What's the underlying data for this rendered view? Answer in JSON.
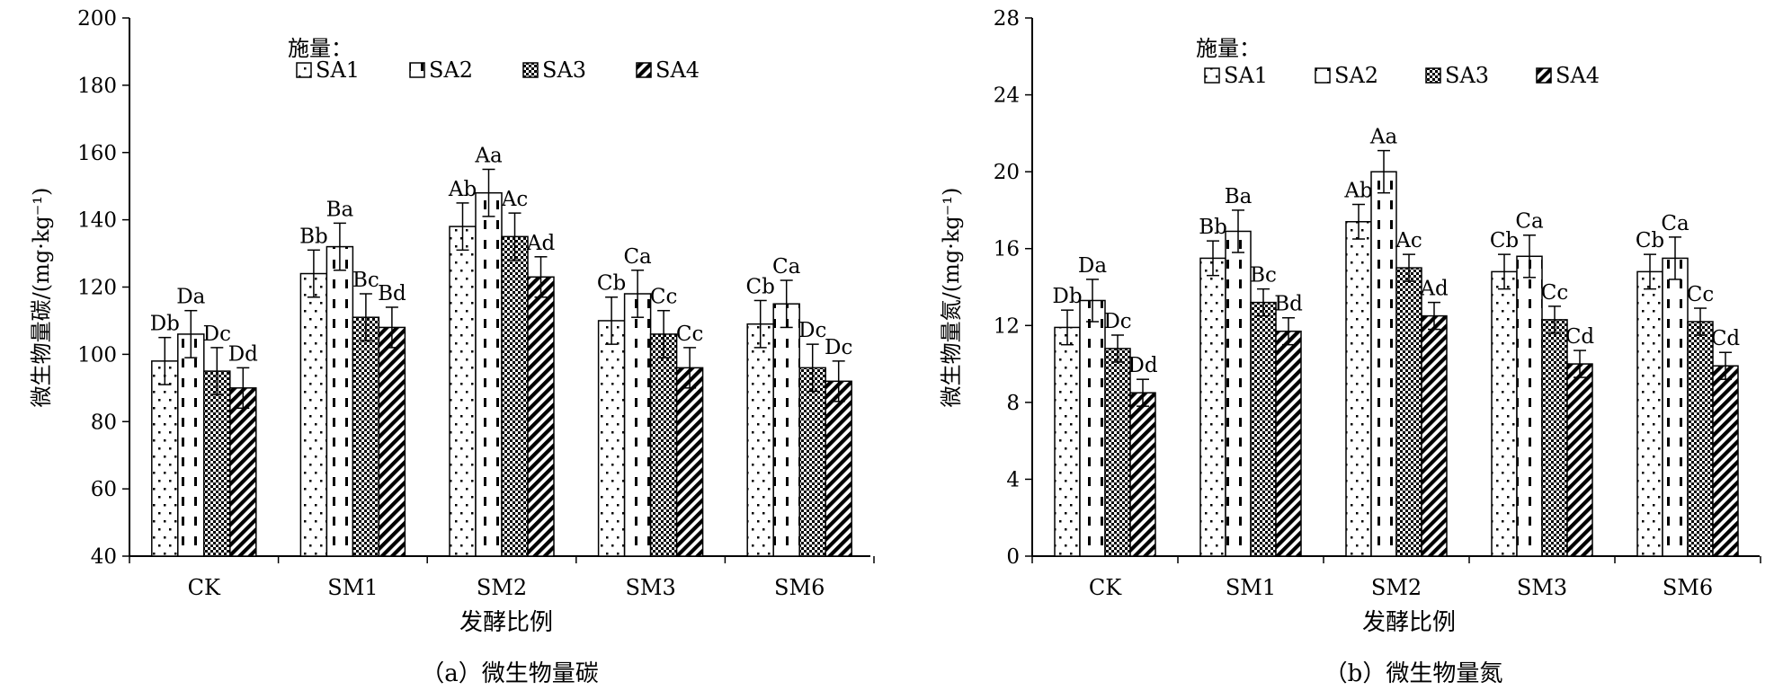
{
  "legend_title": "施量：",
  "chart_data": [
    {
      "type": "bar",
      "caption": "（a）微生物量碳",
      "xlabel": "发酵比例",
      "ylabel": "微生物量碳/(mg·kg⁻¹)",
      "ylim": [
        40,
        200
      ],
      "yticks": [
        40,
        60,
        80,
        100,
        120,
        140,
        160,
        180,
        200
      ],
      "categories": [
        "CK",
        "SM1",
        "SM2",
        "SM3",
        "SM6"
      ],
      "legend_position": "top-left",
      "series": [
        {
          "name": "SA1",
          "values": [
            98,
            124,
            138,
            110,
            109
          ],
          "errors": [
            7,
            7,
            7,
            7,
            7
          ],
          "labels": [
            "Db",
            "Bb",
            "Ab",
            "Cb",
            "Cb"
          ]
        },
        {
          "name": "SA2",
          "values": [
            106,
            132,
            148,
            118,
            115
          ],
          "errors": [
            7,
            7,
            7,
            7,
            7
          ],
          "labels": [
            "Da",
            "Ba",
            "Aa",
            "Ca",
            "Ca"
          ]
        },
        {
          "name": "SA3",
          "values": [
            95,
            111,
            135,
            106,
            96
          ],
          "errors": [
            7,
            7,
            7,
            7,
            7
          ],
          "labels": [
            "Dc",
            "Bc",
            "Ac",
            "Cc",
            "Dc"
          ]
        },
        {
          "name": "SA4",
          "values": [
            90,
            108,
            123,
            96,
            92
          ],
          "errors": [
            6,
            6,
            6,
            6,
            6
          ],
          "labels": [
            "Dd",
            "Bd",
            "Ad",
            "Cc",
            "Dc"
          ]
        }
      ]
    },
    {
      "type": "bar",
      "caption": "（b）微生物量氮",
      "xlabel": "发酵比例",
      "ylabel": "微生物量氮/(mg·kg⁻¹)",
      "ylim": [
        0,
        28
      ],
      "yticks": [
        0,
        4,
        8,
        12,
        16,
        20,
        24,
        28
      ],
      "categories": [
        "CK",
        "SM1",
        "SM2",
        "SM3",
        "SM6"
      ],
      "legend_position": "top-center",
      "series": [
        {
          "name": "SA1",
          "values": [
            11.9,
            15.5,
            17.4,
            14.8,
            14.8
          ],
          "errors": [
            0.9,
            0.9,
            0.9,
            0.9,
            0.9
          ],
          "labels": [
            "Db",
            "Bb",
            "Ab",
            "Cb",
            "Cb"
          ]
        },
        {
          "name": "SA2",
          "values": [
            13.3,
            16.9,
            20.0,
            15.6,
            15.5
          ],
          "errors": [
            1.1,
            1.1,
            1.1,
            1.1,
            1.1
          ],
          "labels": [
            "Da",
            "Ba",
            "Aa",
            "Ca",
            "Ca"
          ]
        },
        {
          "name": "SA3",
          "values": [
            10.8,
            13.2,
            15.0,
            12.3,
            12.2
          ],
          "errors": [
            0.7,
            0.7,
            0.7,
            0.7,
            0.7
          ],
          "labels": [
            "Dc",
            "Bc",
            "Ac",
            "Cc",
            "Cc"
          ]
        },
        {
          "name": "SA4",
          "values": [
            8.5,
            11.7,
            12.5,
            10.0,
            9.9
          ],
          "errors": [
            0.7,
            0.7,
            0.7,
            0.7,
            0.7
          ],
          "labels": [
            "Dd",
            "Bd",
            "Ad",
            "Cd",
            "Cd"
          ]
        }
      ]
    }
  ]
}
